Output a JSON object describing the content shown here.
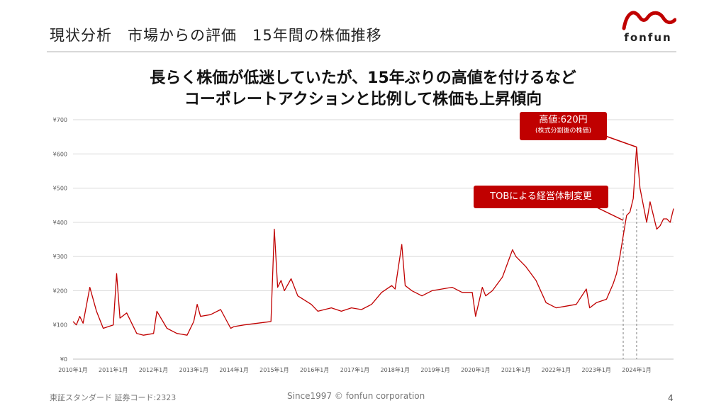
{
  "slide": {
    "title": "現状分析　市場からの評価　15年間の株価推移",
    "logo_text": "fonfun",
    "headline_line1": "長らく株価が低迷していたが、15年ぶりの高値を付けるなど",
    "headline_line2": "コーポレートアクションと比例して株価も上昇傾向",
    "footer_left": "東証スタンダード 証券コード:2323",
    "footer_center": "Since1997 © fonfun corporation",
    "page_number": "4"
  },
  "callouts": {
    "high_main": "高値:620円",
    "high_sub": "(株式分割後の株価)",
    "tob": "TOBによる経営体制変更"
  },
  "colors": {
    "series": "#c00000",
    "callout_bg": "#c00000",
    "grid": "#d9d9d9",
    "logo": "#c00000"
  },
  "chart_data": {
    "type": "line",
    "title": "",
    "xlabel": "",
    "ylabel": "",
    "ylim": [
      0,
      700
    ],
    "xlim": [
      "2010-01",
      "2024-12"
    ],
    "grid": true,
    "y_ticks": [
      "¥0",
      "¥100",
      "¥200",
      "¥300",
      "¥400",
      "¥500",
      "¥600",
      "¥700"
    ],
    "x_ticks": [
      "2010年1月",
      "2011年1月",
      "2012年1月",
      "2013年1月",
      "2014年1月",
      "2015年1月",
      "2016年1月",
      "2017年1月",
      "2018年1月",
      "2019年1月",
      "2020年1月",
      "2021年1月",
      "2022年1月",
      "2023年1月",
      "2024年1月"
    ],
    "reference_lines": [
      "2023-09",
      "2024-01"
    ],
    "series": [
      {
        "x": [
          "2010-01",
          "2010-02",
          "2010-03",
          "2010-04",
          "2010-06",
          "2010-08",
          "2010-10",
          "2011-01",
          "2011-02",
          "2011-03",
          "2011-05",
          "2011-08",
          "2011-10",
          "2012-01",
          "2012-02",
          "2012-05",
          "2012-08",
          "2012-11",
          "2013-01",
          "2013-02",
          "2013-03",
          "2013-06",
          "2013-09",
          "2013-12",
          "2014-01",
          "2014-04",
          "2014-08",
          "2014-12",
          "2015-01",
          "2015-02",
          "2015-03",
          "2015-04",
          "2015-06",
          "2015-08",
          "2015-12",
          "2016-02",
          "2016-06",
          "2016-09",
          "2016-12",
          "2017-03",
          "2017-06",
          "2017-09",
          "2017-12",
          "2018-01",
          "2018-03",
          "2018-04",
          "2018-06",
          "2018-09",
          "2018-12",
          "2019-03",
          "2019-06",
          "2019-09",
          "2019-12",
          "2020-01",
          "2020-03",
          "2020-04",
          "2020-06",
          "2020-09",
          "2020-12",
          "2021-01",
          "2021-04",
          "2021-07",
          "2021-10",
          "2022-01",
          "2022-04",
          "2022-07",
          "2022-10",
          "2022-11",
          "2023-01",
          "2023-04",
          "2023-06",
          "2023-07",
          "2023-08",
          "2023-09",
          "2023-10",
          "2023-11",
          "2023-12",
          "2024-01",
          "2024-02",
          "2024-03",
          "2024-04",
          "2024-05",
          "2024-06",
          "2024-07",
          "2024-08",
          "2024-09",
          "2024-10",
          "2024-11",
          "2024-12"
        ],
        "y": [
          110,
          100,
          125,
          105,
          210,
          140,
          90,
          100,
          250,
          120,
          135,
          75,
          70,
          75,
          140,
          90,
          75,
          70,
          110,
          160,
          125,
          130,
          145,
          90,
          95,
          100,
          105,
          110,
          380,
          210,
          230,
          200,
          235,
          185,
          160,
          140,
          150,
          140,
          150,
          145,
          160,
          195,
          215,
          205,
          335,
          215,
          200,
          185,
          200,
          205,
          210,
          195,
          195,
          125,
          210,
          185,
          200,
          240,
          320,
          300,
          270,
          230,
          165,
          150,
          155,
          160,
          205,
          150,
          165,
          175,
          220,
          250,
          300,
          360,
          420,
          430,
          470,
          620,
          500,
          450,
          400,
          460,
          420,
          380,
          390,
          410,
          410,
          400,
          440
        ]
      }
    ]
  }
}
